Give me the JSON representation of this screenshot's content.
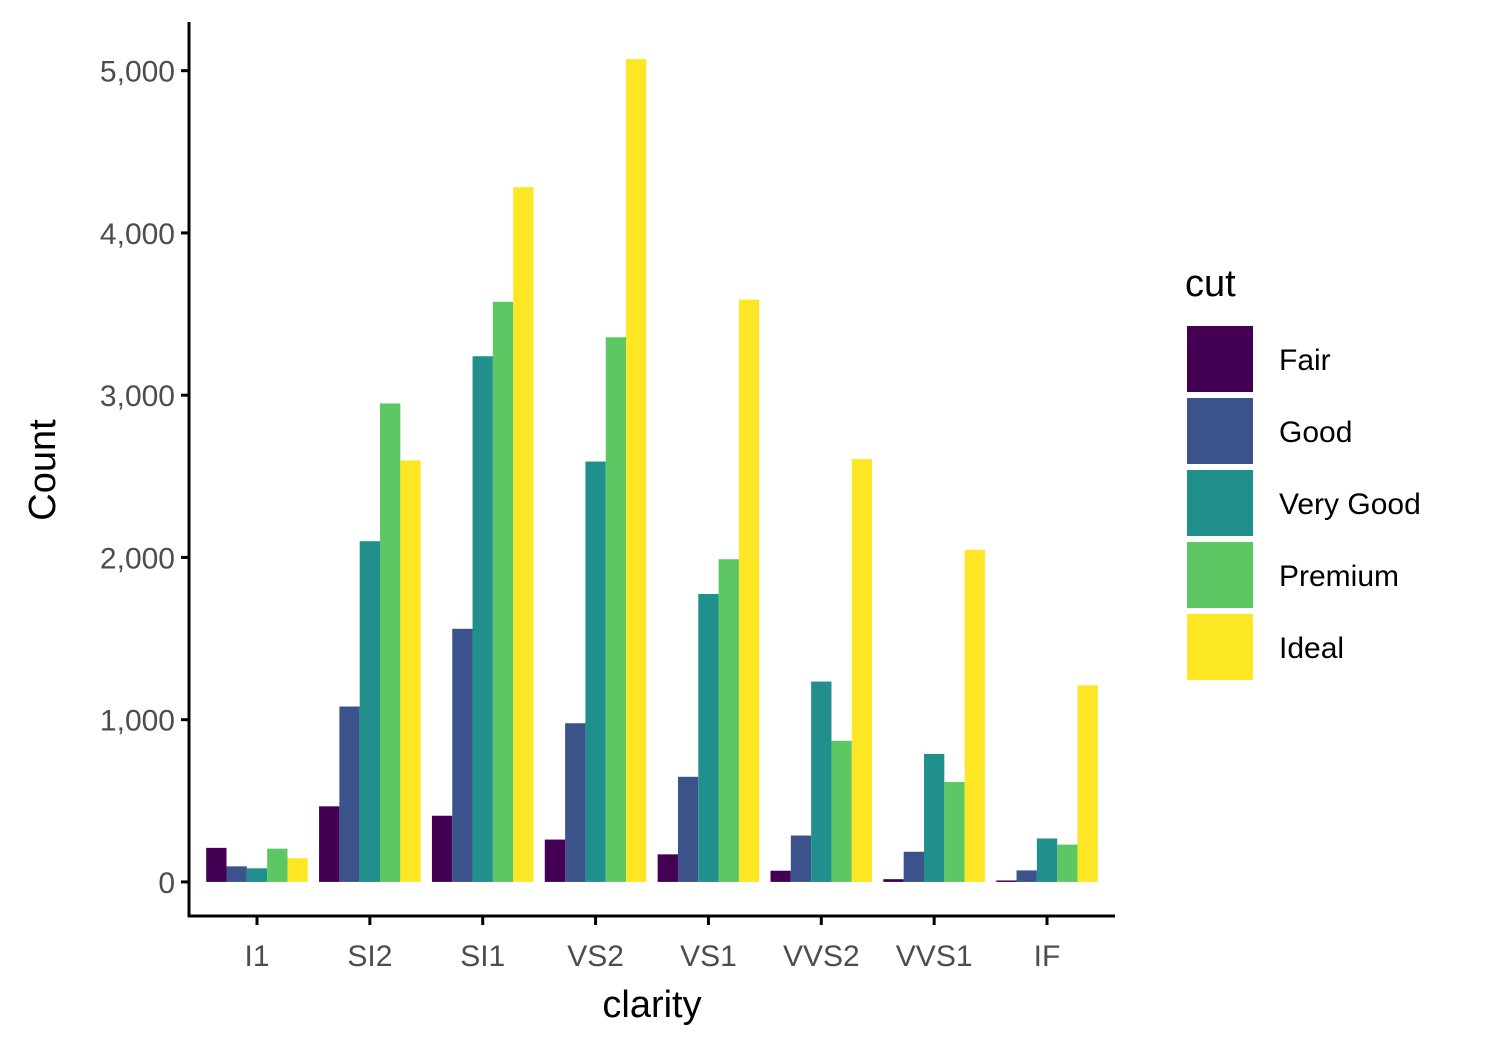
{
  "chart_data": {
    "type": "bar",
    "xlabel": "clarity",
    "ylabel": "Count",
    "ylim": [
      -210,
      5300
    ],
    "yticks": [
      0,
      1000,
      2000,
      3000,
      4000,
      5000
    ],
    "ytick_labels": [
      "0",
      "1,000",
      "2,000",
      "3,000",
      "4,000",
      "5,000"
    ],
    "categories": [
      "I1",
      "SI2",
      "SI1",
      "VS2",
      "VS1",
      "VVS2",
      "VVS1",
      "IF"
    ],
    "grid": false,
    "legend": {
      "title": "cut",
      "position": "right"
    },
    "series": [
      {
        "name": "Fair",
        "color": "#440154",
        "values": [
          210,
          466,
          408,
          261,
          170,
          69,
          17,
          9
        ]
      },
      {
        "name": "Good",
        "color": "#3B528B",
        "values": [
          96,
          1081,
          1560,
          978,
          648,
          286,
          186,
          71
        ]
      },
      {
        "name": "Very Good",
        "color": "#21908C",
        "values": [
          84,
          2100,
          3240,
          2591,
          1775,
          1235,
          789,
          268
        ]
      },
      {
        "name": "Premium",
        "color": "#5DC863",
        "values": [
          205,
          2949,
          3575,
          3357,
          1989,
          870,
          616,
          230
        ]
      },
      {
        "name": "Ideal",
        "color": "#FDE725",
        "values": [
          146,
          2598,
          4282,
          5071,
          3589,
          2606,
          2047,
          1212
        ]
      }
    ]
  }
}
